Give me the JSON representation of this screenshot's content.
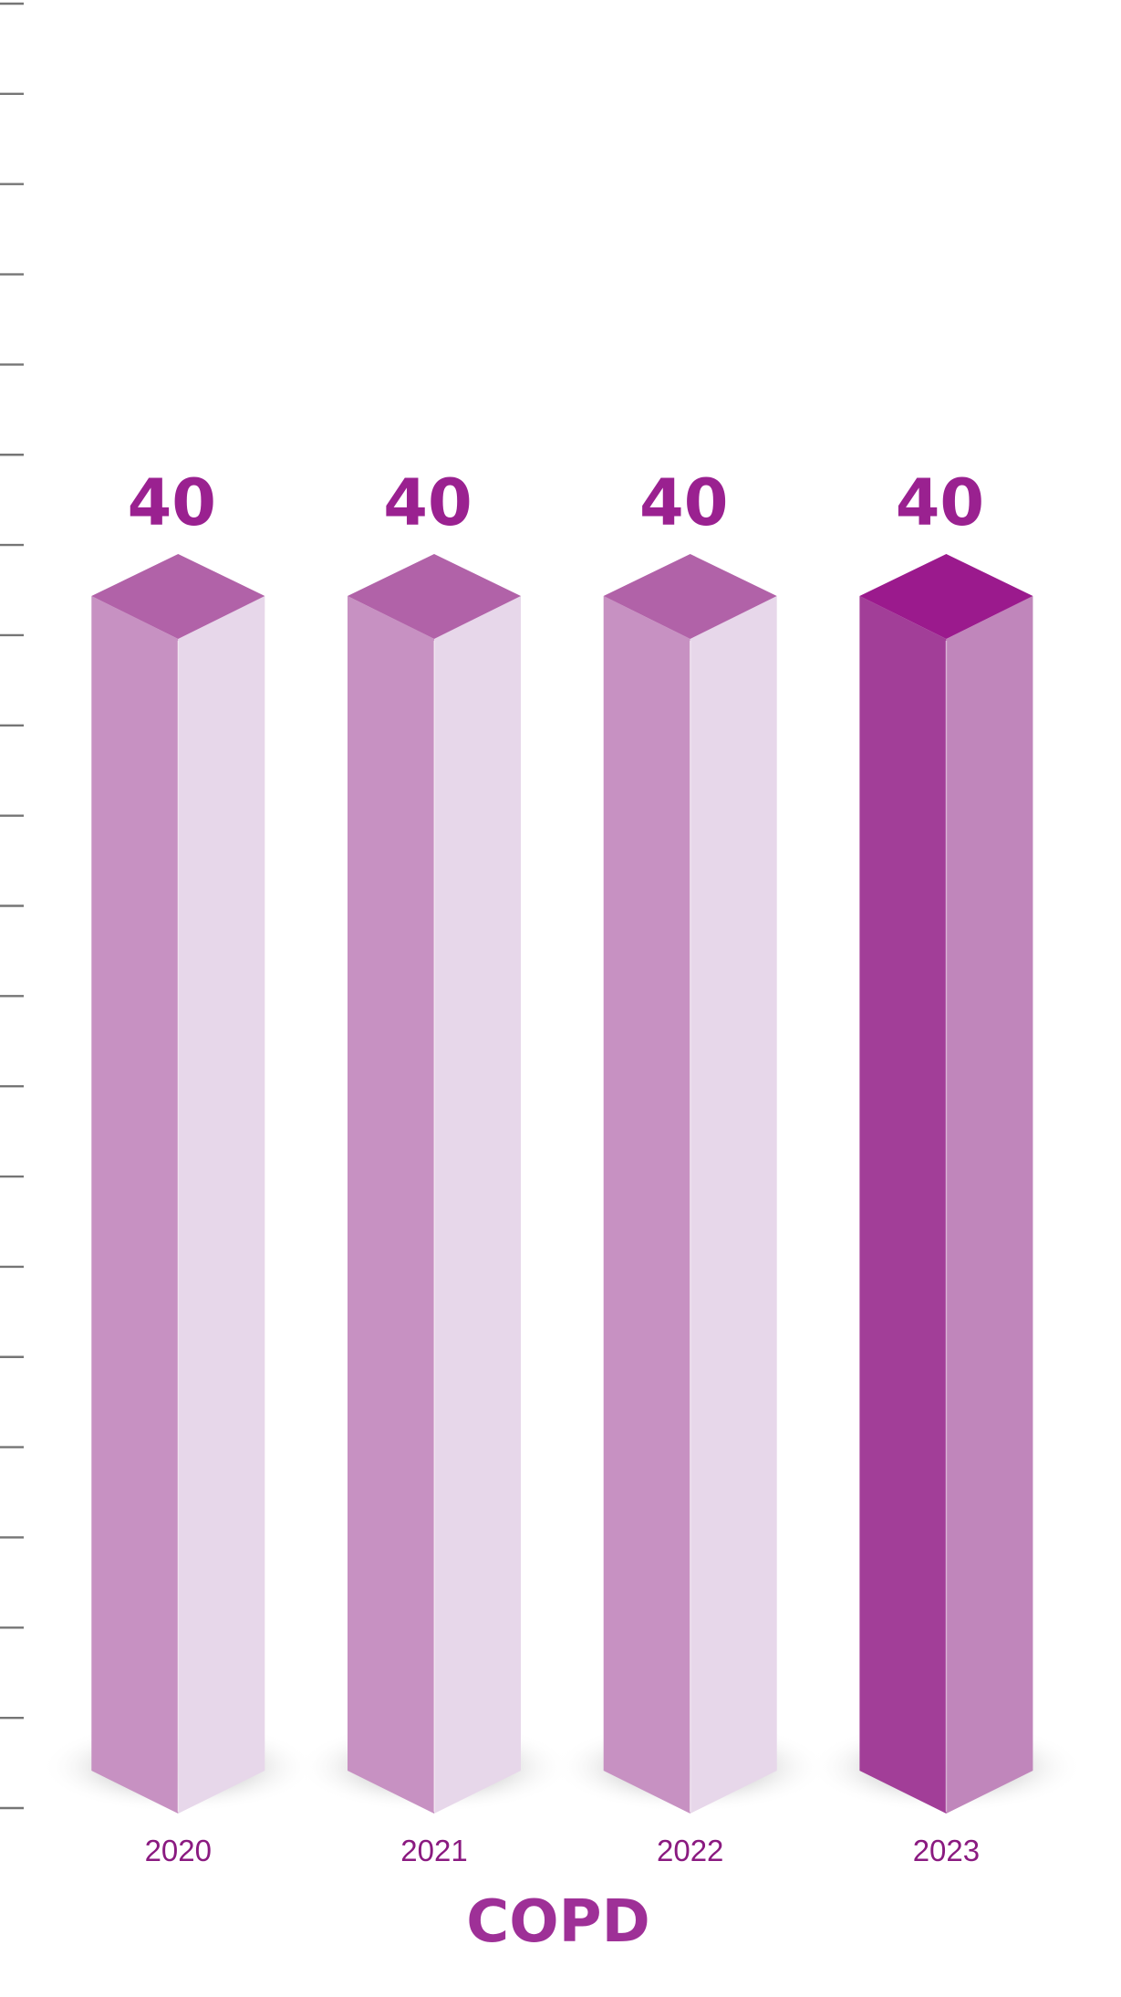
{
  "title": {
    "text": "COPD"
  },
  "colors": {
    "background": "#ffffff",
    "tick": "#757575",
    "value_label": "#9a2190",
    "category_label": "#8a1a80",
    "title": "#9e3097",
    "bar_normal": {
      "top": "#b162a8",
      "left": "#c791c2",
      "right": "#e7d7ea"
    },
    "bar_highlight": {
      "top": "#9b1a8d",
      "left": "#a23e98",
      "right": "#c086bb"
    }
  },
  "axis": {
    "tick_count": 21,
    "tick_labels_visible": false
  },
  "chart_data": {
    "type": "bar",
    "style": "3d-prism-columns",
    "title": "COPD",
    "xlabel": "",
    "ylabel": "",
    "categories": [
      "2020",
      "2021",
      "2022",
      "2023"
    ],
    "values": [
      40,
      40,
      40,
      40
    ],
    "data_labels": [
      "40",
      "40",
      "40",
      "40"
    ],
    "highlight_index": 3,
    "legend": "none",
    "grid": "tick marks on left edge only"
  }
}
